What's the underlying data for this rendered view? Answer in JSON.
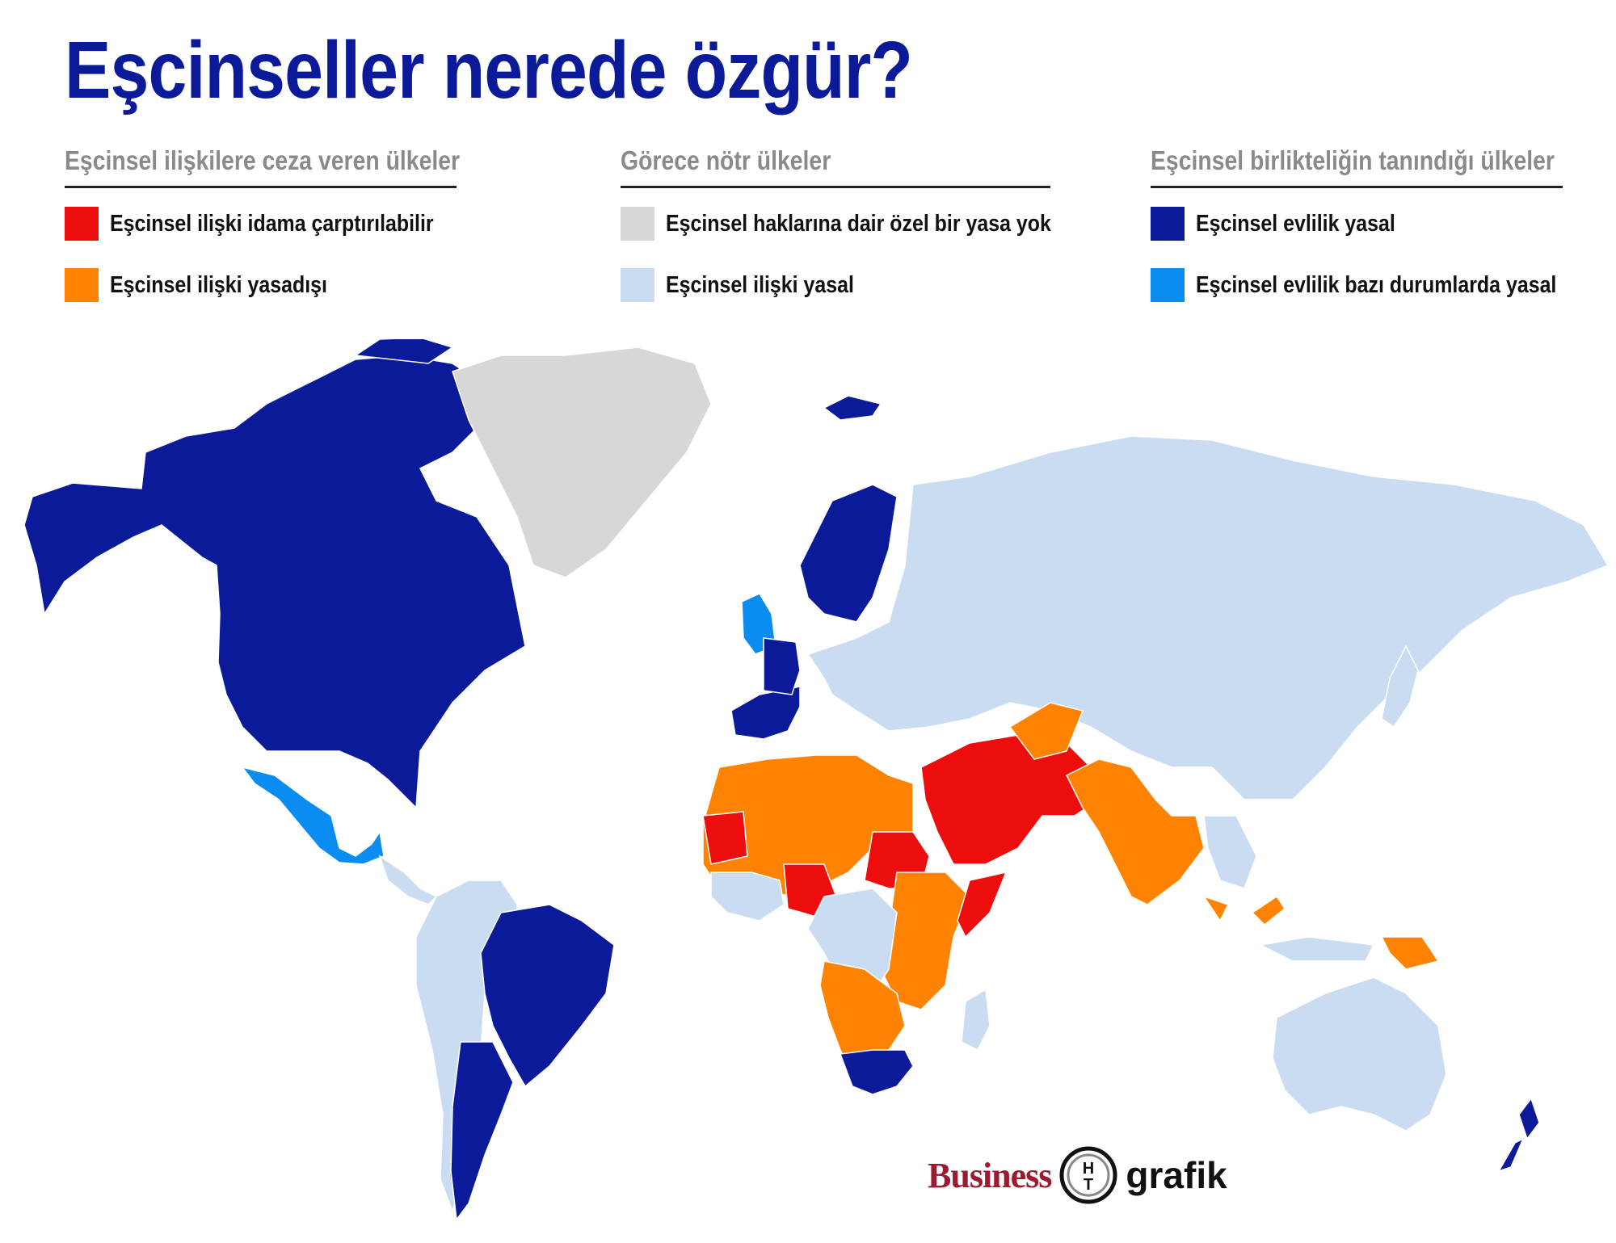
{
  "title": "Eşcinseller nerede özgür?",
  "legend": {
    "groups": [
      {
        "heading": "Eşcinsel ilişkilere ceza veren ülkeler",
        "items": [
          {
            "label": "Eşcinsel ilişki idama çarptırılabilir",
            "color": "#ee0d0d"
          },
          {
            "label": "Eşcinsel ilişki yasadışı",
            "color": "#ff8200"
          }
        ]
      },
      {
        "heading": "Görece nötr ülkeler",
        "items": [
          {
            "label": "Eşcinsel haklarına dair özel bir yasa yok",
            "color": "#d7d7d7"
          },
          {
            "label": "Eşcinsel ilişki yasal",
            "color": "#cadcf2"
          }
        ]
      },
      {
        "heading": "Eşcinsel birlikteliğin tanındığı ülkeler",
        "items": [
          {
            "label": "Eşcinsel evlilik yasal",
            "color": "#0a1a99"
          },
          {
            "label": "Eşcinsel evlilik bazı durumlarda yasal",
            "color": "#0a8cf0"
          }
        ]
      }
    ]
  },
  "branding": {
    "business": "Business",
    "logo_letters": "HT",
    "grafik": "grafik"
  }
}
